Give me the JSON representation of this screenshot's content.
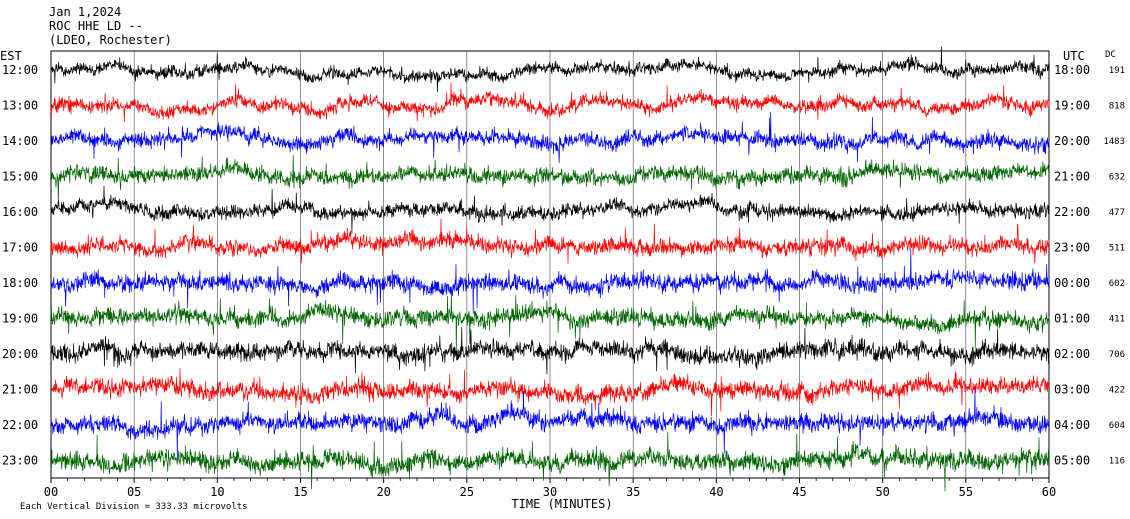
{
  "header": {
    "date": "Jan 1,2024",
    "station": "ROC HHE LD --",
    "network": "(LDEO, Rochester)"
  },
  "chart_data": {
    "type": "line",
    "left_axis_label": "EST",
    "right_axis_label": "UTC",
    "dc_label": "DC",
    "x_label": "TIME (MINUTES)",
    "x_ticks": [
      "00",
      "05",
      "10",
      "15",
      "20",
      "25",
      "30",
      "35",
      "40",
      "45",
      "50",
      "55",
      "60"
    ],
    "xlim": [
      0,
      60
    ],
    "footer": "Each Vertical Division = 333.33 microvolts",
    "trace_colors": [
      "#000000",
      "#ff0000",
      "#0000ff",
      "#006400"
    ],
    "rows": [
      {
        "est": "12:00",
        "utc": "18:00",
        "dc": "191"
      },
      {
        "est": "13:00",
        "utc": "19:00",
        "dc": "818"
      },
      {
        "est": "14:00",
        "utc": "20:00",
        "dc": "1483"
      },
      {
        "est": "15:00",
        "utc": "21:00",
        "dc": "632"
      },
      {
        "est": "16:00",
        "utc": "22:00",
        "dc": "477"
      },
      {
        "est": "17:00",
        "utc": "23:00",
        "dc": "511"
      },
      {
        "est": "18:00",
        "utc": "00:00",
        "dc": "602"
      },
      {
        "est": "19:00",
        "utc": "01:00",
        "dc": "411"
      },
      {
        "est": "20:00",
        "utc": "02:00",
        "dc": "706"
      },
      {
        "est": "21:00",
        "utc": "03:00",
        "dc": "422"
      },
      {
        "est": "22:00",
        "utc": "04:00",
        "dc": "604"
      },
      {
        "est": "23:00",
        "utc": "05:00",
        "dc": "116"
      }
    ]
  }
}
